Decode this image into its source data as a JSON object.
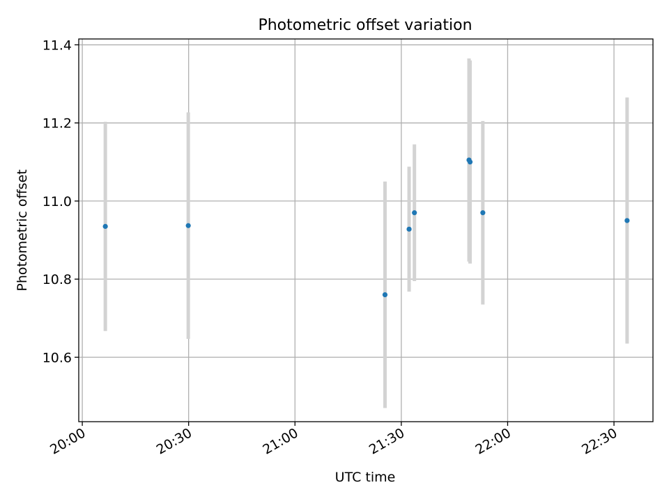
{
  "chart_data": {
    "type": "scatter",
    "title": "Photometric offset variation",
    "xlabel": "UTC time",
    "ylabel": "Photometric offset",
    "x_ticks": [
      "20:00",
      "20:30",
      "21:00",
      "21:30",
      "22:00",
      "22:30"
    ],
    "y_ticks": [
      "10.6",
      "10.8",
      "11.0",
      "11.2",
      "11.4"
    ],
    "xlim": [
      "19:59",
      "22:41"
    ],
    "ylim": [
      10.435,
      11.415
    ],
    "grid": true,
    "point_color": "#1f77b4",
    "errorbar_color": "#d3d3d3",
    "points": [
      {
        "t": "20:06:30",
        "y": 10.935,
        "err": 0.268
      },
      {
        "t": "20:29:54",
        "y": 10.937,
        "err": 0.29
      },
      {
        "t": "21:25:24",
        "y": 10.76,
        "err": 0.29
      },
      {
        "t": "21:32:12",
        "y": 10.928,
        "err": 0.16
      },
      {
        "t": "21:33:42",
        "y": 10.97,
        "err": 0.175
      },
      {
        "t": "21:49:06",
        "y": 11.105,
        "err": 0.26
      },
      {
        "t": "21:49:24",
        "y": 11.1,
        "err": 0.26
      },
      {
        "t": "21:53:00",
        "y": 10.97,
        "err": 0.235
      },
      {
        "t": "22:33:42",
        "y": 10.95,
        "err": 0.315
      }
    ]
  }
}
